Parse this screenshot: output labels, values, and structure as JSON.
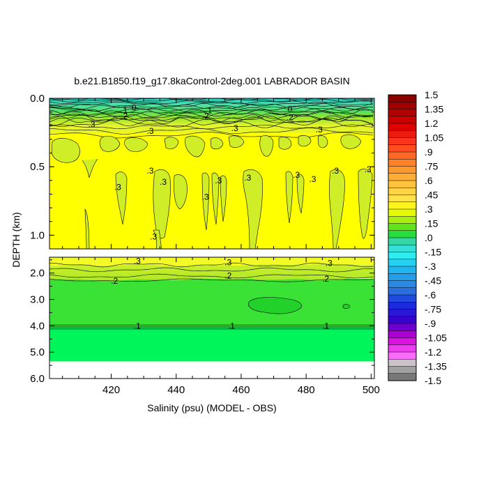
{
  "chart_data": {
    "type": "heatmap",
    "title": "b.e21.B1850.f19_g17.8kaControl-2deg.001 LABRADOR BASIN",
    "xlabel": "Salinity (psu) (MODEL - OBS)",
    "ylabel": "DEPTH (km)",
    "x_range": [
      401,
      501
    ],
    "x_ticks": [
      "420",
      "440",
      "460",
      "480",
      "500"
    ],
    "upper_panel": {
      "y_range": [
        0.0,
        1.1
      ],
      "y_ticks": [
        "0.0",
        "0.5",
        "1.0"
      ]
    },
    "lower_panel": {
      "y_range": [
        1.4,
        6.0
      ],
      "y_ticks": [
        "2.0",
        "3.0",
        "4.0",
        "5.0",
        "6.0"
      ],
      "data_bottom_depth": 5.35
    },
    "colorbar": {
      "labels": [
        "1.5",
        "1.35",
        "1.2",
        "1.05",
        ".9",
        ".75",
        ".6",
        ".45",
        ".3",
        ".15",
        ".0",
        "-.15",
        "-.3",
        "-.45",
        "-.6",
        "-.75",
        "-.9",
        "-1.05",
        "-1.2",
        "-1.35",
        "-1.5"
      ],
      "min": -1.5,
      "max": 1.5,
      "levels": 40
    },
    "contour_labels": {
      "upper": [
        {
          "text": ".3",
          "x": 414,
          "depth": 0.19
        },
        {
          "text": ".3",
          "x": 432,
          "depth": 0.24
        },
        {
          "text": ".3",
          "x": 458,
          "depth": 0.22
        },
        {
          "text": ".3",
          "x": 484,
          "depth": 0.23
        },
        {
          "text": ".2",
          "x": 424,
          "depth": 0.13
        },
        {
          "text": ".2",
          "x": 449,
          "depth": 0.13
        },
        {
          "text": ".2",
          "x": 475,
          "depth": 0.14
        },
        {
          "text": ".1",
          "x": 424,
          "depth": 0.09
        },
        {
          "text": ".1",
          "x": 450,
          "depth": 0.09
        },
        {
          "text": "0",
          "x": 427,
          "depth": 0.07
        },
        {
          "text": "0",
          "x": 475,
          "depth": 0.08
        },
        {
          "text": ".3",
          "x": 422,
          "depth": 0.65
        },
        {
          "text": ".3",
          "x": 432,
          "depth": 0.53
        },
        {
          "text": ".3",
          "x": 436,
          "depth": 0.61
        },
        {
          "text": ".3",
          "x": 449,
          "depth": 0.72
        },
        {
          "text": ".3",
          "x": 453,
          "depth": 0.6
        },
        {
          "text": ".3",
          "x": 462,
          "depth": 0.58
        },
        {
          "text": ".3",
          "x": 477,
          "depth": 0.56
        },
        {
          "text": ".3",
          "x": 482,
          "depth": 0.59
        },
        {
          "text": ".3",
          "x": 489,
          "depth": 0.53
        },
        {
          "text": ".3",
          "x": 499,
          "depth": 0.52
        },
        {
          "text": ".3",
          "x": 433,
          "depth": 1.01
        }
      ],
      "lower": [
        {
          "text": ".3",
          "x": 428,
          "depth": 1.55
        },
        {
          "text": ".3",
          "x": 456,
          "depth": 1.6
        },
        {
          "text": ".3",
          "x": 487,
          "depth": 1.63
        },
        {
          "text": ".2",
          "x": 421,
          "depth": 2.3
        },
        {
          "text": ".2",
          "x": 456,
          "depth": 2.1
        },
        {
          "text": ".2",
          "x": 486,
          "depth": 2.22
        },
        {
          "text": ".1",
          "x": 428,
          "depth": 4.0
        },
        {
          "text": ".1",
          "x": 457,
          "depth": 4.0
        },
        {
          "text": ".1",
          "x": 486,
          "depth": 4.0
        }
      ]
    }
  }
}
